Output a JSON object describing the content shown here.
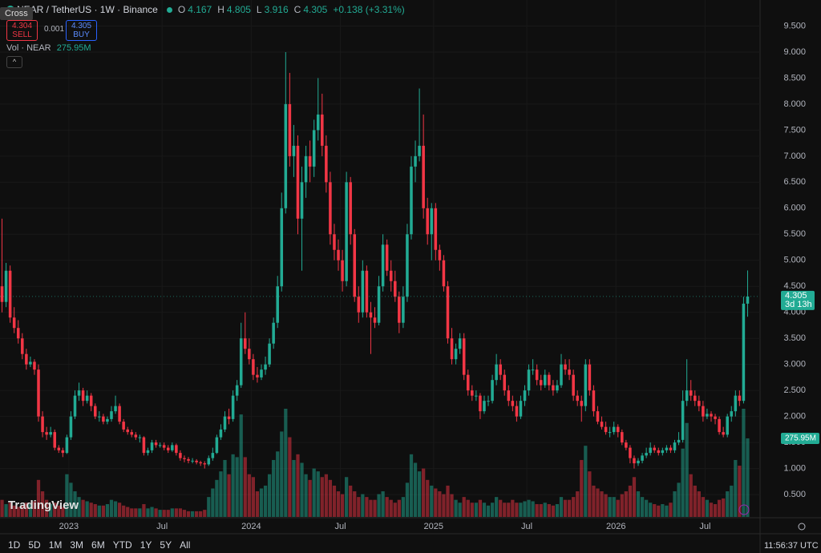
{
  "chart_data": {
    "type": "candlestick",
    "title": "NEAR / TetherUS · 1W · Binance",
    "ohlc_letters": [
      "O",
      "H",
      "L",
      "C"
    ],
    "change": "+0.138 (+3.31%)",
    "volume_title": "Vol · NEAR",
    "volume_value": "275.95M",
    "countdown": "3d 13h",
    "colors": {
      "up": "#22ab94",
      "down": "#f23645"
    },
    "grid": true,
    "ylim": [
      0.07,
      10.0
    ],
    "yticks": [
      {
        "value": 0.5,
        "label": "0.500"
      },
      {
        "value": 1,
        "label": "1.000"
      },
      {
        "value": 1.5,
        "label": "1.500"
      },
      {
        "value": 2,
        "label": "2.000"
      },
      {
        "value": 2.5,
        "label": "2.500"
      },
      {
        "value": 3,
        "label": "3.000"
      },
      {
        "value": 3.5,
        "label": "3.500"
      },
      {
        "value": 4,
        "label": "4.000"
      },
      {
        "value": 4.5,
        "label": "4.500"
      },
      {
        "value": 5,
        "label": "5.000"
      },
      {
        "value": 5.5,
        "label": "5.500"
      },
      {
        "value": 6,
        "label": "6.000"
      },
      {
        "value": 6.5,
        "label": "6.500"
      },
      {
        "value": 7,
        "label": "7.000"
      },
      {
        "value": 7.5,
        "label": "7.500"
      },
      {
        "value": 8,
        "label": "8.000"
      },
      {
        "value": 8.5,
        "label": "8.500"
      },
      {
        "value": 9,
        "label": "9.000"
      },
      {
        "value": 9.5,
        "label": "9.500"
      }
    ],
    "xticks": [
      {
        "value": 17,
        "label": "2023"
      },
      {
        "value": 40,
        "label": "Jul"
      },
      {
        "value": 62,
        "label": "2024"
      },
      {
        "value": 84,
        "label": "Jul"
      },
      {
        "value": 107,
        "label": "2025"
      },
      {
        "value": 130,
        "label": "Jul"
      },
      {
        "value": 152,
        "label": "2026"
      },
      {
        "value": 174,
        "label": "Jul"
      }
    ],
    "ohlc": [
      [
        4.5,
        5.8,
        4.0,
        4.2
      ],
      [
        4.2,
        4.95,
        4.1,
        4.8
      ],
      [
        4.8,
        4.9,
        3.8,
        3.9
      ],
      [
        3.9,
        4.1,
        3.6,
        3.7
      ],
      [
        3.7,
        3.85,
        3.4,
        3.5
      ],
      [
        3.5,
        3.6,
        3.1,
        3.2
      ],
      [
        3.2,
        3.3,
        2.9,
        3.0
      ],
      [
        3.0,
        3.15,
        2.95,
        3.05
      ],
      [
        3.05,
        3.1,
        2.8,
        2.9
      ],
      [
        2.9,
        3.0,
        1.9,
        2.0
      ],
      [
        2.0,
        2.1,
        1.6,
        1.7
      ],
      [
        1.7,
        1.8,
        1.55,
        1.65
      ],
      [
        1.65,
        1.8,
        1.6,
        1.7
      ],
      [
        1.7,
        1.75,
        1.35,
        1.4
      ],
      [
        1.4,
        1.45,
        1.3,
        1.35
      ],
      [
        1.35,
        1.4,
        1.22,
        1.3
      ],
      [
        1.3,
        1.65,
        1.28,
        1.6
      ],
      [
        1.6,
        2.1,
        1.55,
        2.0
      ],
      [
        2.0,
        2.5,
        1.95,
        2.4
      ],
      [
        2.4,
        2.65,
        2.3,
        2.5
      ],
      [
        2.5,
        2.55,
        2.2,
        2.3
      ],
      [
        2.3,
        2.5,
        2.25,
        2.4
      ],
      [
        2.4,
        2.45,
        2.1,
        2.2
      ],
      [
        2.2,
        2.25,
        1.95,
        2.0
      ],
      [
        2.0,
        2.1,
        1.9,
        2.0
      ],
      [
        2.0,
        2.05,
        1.85,
        1.9
      ],
      [
        1.9,
        2.0,
        1.85,
        1.95
      ],
      [
        1.95,
        2.2,
        1.9,
        2.1
      ],
      [
        2.1,
        2.4,
        2.05,
        2.2
      ],
      [
        2.2,
        2.25,
        1.85,
        1.9
      ],
      [
        1.9,
        1.95,
        1.7,
        1.75
      ],
      [
        1.75,
        1.8,
        1.65,
        1.7
      ],
      [
        1.7,
        1.75,
        1.6,
        1.65
      ],
      [
        1.65,
        1.7,
        1.55,
        1.6
      ],
      [
        1.6,
        1.65,
        1.5,
        1.6
      ],
      [
        1.6,
        1.62,
        1.25,
        1.3
      ],
      [
        1.3,
        1.4,
        1.25,
        1.35
      ],
      [
        1.35,
        1.55,
        1.3,
        1.5
      ],
      [
        1.5,
        1.55,
        1.4,
        1.45
      ],
      [
        1.45,
        1.5,
        1.4,
        1.45
      ],
      [
        1.45,
        1.5,
        1.35,
        1.4
      ],
      [
        1.4,
        1.45,
        1.3,
        1.35
      ],
      [
        1.35,
        1.5,
        1.32,
        1.45
      ],
      [
        1.45,
        1.48,
        1.25,
        1.3
      ],
      [
        1.3,
        1.35,
        1.15,
        1.2
      ],
      [
        1.2,
        1.25,
        1.12,
        1.18
      ],
      [
        1.18,
        1.22,
        1.1,
        1.15
      ],
      [
        1.15,
        1.2,
        1.1,
        1.15
      ],
      [
        1.15,
        1.18,
        1.08,
        1.12
      ],
      [
        1.12,
        1.15,
        1.05,
        1.1
      ],
      [
        1.1,
        1.14,
        1.0,
        1.08
      ],
      [
        1.08,
        1.25,
        1.05,
        1.2
      ],
      [
        1.2,
        1.4,
        1.15,
        1.3
      ],
      [
        1.3,
        1.65,
        1.28,
        1.6
      ],
      [
        1.6,
        1.85,
        1.55,
        1.75
      ],
      [
        1.75,
        2.1,
        1.7,
        2.0
      ],
      [
        2.0,
        2.15,
        1.85,
        1.95
      ],
      [
        1.95,
        2.5,
        1.9,
        2.4
      ],
      [
        2.4,
        2.7,
        2.3,
        2.6
      ],
      [
        2.6,
        3.8,
        2.55,
        3.5
      ],
      [
        3.5,
        4.0,
        3.2,
        3.3
      ],
      [
        3.3,
        3.5,
        3.0,
        3.1
      ],
      [
        3.1,
        3.2,
        2.7,
        2.8
      ],
      [
        2.8,
        2.95,
        2.65,
        2.75
      ],
      [
        2.75,
        3.0,
        2.7,
        2.9
      ],
      [
        2.9,
        3.15,
        2.8,
        3.0
      ],
      [
        3.0,
        3.5,
        2.95,
        3.4
      ],
      [
        3.4,
        3.9,
        3.3,
        3.8
      ],
      [
        3.8,
        4.7,
        3.7,
        4.5
      ],
      [
        4.5,
        6.3,
        4.4,
        6.0
      ],
      [
        6.0,
        9.0,
        5.9,
        8.0
      ],
      [
        8.0,
        8.6,
        6.8,
        7.0
      ],
      [
        7.0,
        7.6,
        6.6,
        7.2
      ],
      [
        7.2,
        7.4,
        5.5,
        5.8
      ],
      [
        5.8,
        6.8,
        4.8,
        6.5
      ],
      [
        6.5,
        7.2,
        6.2,
        7.0
      ],
      [
        7.0,
        7.3,
        6.5,
        6.8
      ],
      [
        6.8,
        7.7,
        6.6,
        7.5
      ],
      [
        7.5,
        8.5,
        7.3,
        7.8
      ],
      [
        7.8,
        8.2,
        7.0,
        7.2
      ],
      [
        7.2,
        7.4,
        6.3,
        6.5
      ],
      [
        6.5,
        6.7,
        5.3,
        5.5
      ],
      [
        5.5,
        5.7,
        5.0,
        5.2
      ],
      [
        5.2,
        5.4,
        4.8,
        5.0
      ],
      [
        5.0,
        5.2,
        4.4,
        4.6
      ],
      [
        4.6,
        6.7,
        4.5,
        6.5
      ],
      [
        6.5,
        6.6,
        5.3,
        5.5
      ],
      [
        5.5,
        5.6,
        4.2,
        4.3
      ],
      [
        4.3,
        4.5,
        3.8,
        4.0
      ],
      [
        4.0,
        5.0,
        3.9,
        4.8
      ],
      [
        4.8,
        4.9,
        3.9,
        4.0
      ],
      [
        4.0,
        4.2,
        3.2,
        3.9
      ],
      [
        3.9,
        4.1,
        3.7,
        3.8
      ],
      [
        3.8,
        4.7,
        3.75,
        4.5
      ],
      [
        4.5,
        5.5,
        4.4,
        5.3
      ],
      [
        5.3,
        5.4,
        4.7,
        4.8
      ],
      [
        4.8,
        5.0,
        4.4,
        4.6
      ],
      [
        4.6,
        4.8,
        4.2,
        4.3
      ],
      [
        4.3,
        4.4,
        3.6,
        3.8
      ],
      [
        3.8,
        4.5,
        3.7,
        4.3
      ],
      [
        4.3,
        5.7,
        4.2,
        5.5
      ],
      [
        5.5,
        7.0,
        5.4,
        6.8
      ],
      [
        6.8,
        7.3,
        6.5,
        7.0
      ],
      [
        7.0,
        8.3,
        6.9,
        7.2
      ],
      [
        7.2,
        7.8,
        5.8,
        6.0
      ],
      [
        6.0,
        6.2,
        5.3,
        5.5
      ],
      [
        5.5,
        6.1,
        5.0,
        6.0
      ],
      [
        6.0,
        6.1,
        5.0,
        5.2
      ],
      [
        5.2,
        5.3,
        4.8,
        5.0
      ],
      [
        5.0,
        5.1,
        4.4,
        4.5
      ],
      [
        4.5,
        4.6,
        3.4,
        3.5
      ],
      [
        3.5,
        3.7,
        3.0,
        3.1
      ],
      [
        3.1,
        3.4,
        3.0,
        3.3
      ],
      [
        3.3,
        3.6,
        3.2,
        3.5
      ],
      [
        3.5,
        3.6,
        2.7,
        2.8
      ],
      [
        2.8,
        2.9,
        2.4,
        2.5
      ],
      [
        2.5,
        2.6,
        2.3,
        2.4
      ],
      [
        2.4,
        2.5,
        2.3,
        2.4
      ],
      [
        2.4,
        2.45,
        1.95,
        2.1
      ],
      [
        2.1,
        2.4,
        2.05,
        2.3
      ],
      [
        2.3,
        2.4,
        2.2,
        2.3
      ],
      [
        2.3,
        2.8,
        2.25,
        2.7
      ],
      [
        2.7,
        3.2,
        2.6,
        3.0
      ],
      [
        3.0,
        3.1,
        2.7,
        2.8
      ],
      [
        2.8,
        2.9,
        2.4,
        2.5
      ],
      [
        2.5,
        2.6,
        2.2,
        2.3
      ],
      [
        2.3,
        2.4,
        2.1,
        2.2
      ],
      [
        2.2,
        2.3,
        1.9,
        2.0
      ],
      [
        2.0,
        2.4,
        1.95,
        2.3
      ],
      [
        2.3,
        2.6,
        2.2,
        2.5
      ],
      [
        2.5,
        3.0,
        2.4,
        2.9
      ],
      [
        2.9,
        3.1,
        2.8,
        2.9
      ],
      [
        2.9,
        3.0,
        2.6,
        2.7
      ],
      [
        2.7,
        2.8,
        2.5,
        2.6
      ],
      [
        2.6,
        2.9,
        2.55,
        2.8
      ],
      [
        2.8,
        2.85,
        2.5,
        2.6
      ],
      [
        2.6,
        2.7,
        2.4,
        2.5
      ],
      [
        2.5,
        2.7,
        2.45,
        2.6
      ],
      [
        2.6,
        3.2,
        2.55,
        3.0
      ],
      [
        3.0,
        3.1,
        2.8,
        2.9
      ],
      [
        2.9,
        3.1,
        2.7,
        2.8
      ],
      [
        2.8,
        2.9,
        2.3,
        2.4
      ],
      [
        2.4,
        2.5,
        2.2,
        2.3
      ],
      [
        2.3,
        2.4,
        1.9,
        2.2
      ],
      [
        2.2,
        3.1,
        2.1,
        3.0
      ],
      [
        3.0,
        3.1,
        2.4,
        2.5
      ],
      [
        2.5,
        2.6,
        2.0,
        2.1
      ],
      [
        2.1,
        2.2,
        1.85,
        1.9
      ],
      [
        1.9,
        2.0,
        1.75,
        1.8
      ],
      [
        1.8,
        1.9,
        1.65,
        1.7
      ],
      [
        1.7,
        1.8,
        1.6,
        1.7
      ],
      [
        1.7,
        1.9,
        1.65,
        1.8
      ],
      [
        1.8,
        1.85,
        1.6,
        1.7
      ],
      [
        1.7,
        1.75,
        1.45,
        1.5
      ],
      [
        1.5,
        1.55,
        1.35,
        1.4
      ],
      [
        1.4,
        1.45,
        1.1,
        1.2
      ],
      [
        1.2,
        1.25,
        1.0,
        1.1
      ],
      [
        1.1,
        1.2,
        1.05,
        1.15
      ],
      [
        1.15,
        1.3,
        1.1,
        1.25
      ],
      [
        1.25,
        1.4,
        1.2,
        1.3
      ],
      [
        1.3,
        1.5,
        1.25,
        1.4
      ],
      [
        1.4,
        1.45,
        1.3,
        1.35
      ],
      [
        1.35,
        1.4,
        1.25,
        1.3
      ],
      [
        1.3,
        1.4,
        1.25,
        1.35
      ],
      [
        1.35,
        1.45,
        1.3,
        1.4
      ],
      [
        1.4,
        1.45,
        1.3,
        1.35
      ],
      [
        1.35,
        1.55,
        1.3,
        1.5
      ],
      [
        1.5,
        1.7,
        1.45,
        1.55
      ],
      [
        1.55,
        2.5,
        1.5,
        2.3
      ],
      [
        2.3,
        3.1,
        2.2,
        2.5
      ],
      [
        2.5,
        2.7,
        2.3,
        2.4
      ],
      [
        2.4,
        2.5,
        2.2,
        2.3
      ],
      [
        2.3,
        2.4,
        2.1,
        2.2
      ],
      [
        2.2,
        2.3,
        1.9,
        2.0
      ],
      [
        2.0,
        2.15,
        1.95,
        2.05
      ],
      [
        2.05,
        2.1,
        1.9,
        2.0
      ],
      [
        2.0,
        2.05,
        1.85,
        1.95
      ],
      [
        1.95,
        2.0,
        1.65,
        1.7
      ],
      [
        1.7,
        1.8,
        1.6,
        1.65
      ],
      [
        1.65,
        2.05,
        1.6,
        2.0
      ],
      [
        2.0,
        2.2,
        1.9,
        2.1
      ],
      [
        2.1,
        2.5,
        2.0,
        2.4
      ],
      [
        2.4,
        2.5,
        2.2,
        2.3
      ],
      [
        2.3,
        4.3,
        2.25,
        4.167
      ],
      [
        4.167,
        4.805,
        3.916,
        4.305
      ]
    ],
    "volume": [
      60,
      45,
      50,
      40,
      35,
      40,
      50,
      45,
      55,
      130,
      90,
      60,
      45,
      50,
      40,
      35,
      150,
      120,
      90,
      70,
      60,
      55,
      50,
      45,
      40,
      40,
      45,
      60,
      55,
      50,
      40,
      35,
      30,
      30,
      30,
      45,
      30,
      35,
      30,
      25,
      25,
      25,
      30,
      30,
      30,
      25,
      20,
      20,
      20,
      20,
      25,
      70,
      100,
      130,
      160,
      200,
      150,
      220,
      210,
      360,
      210,
      150,
      140,
      90,
      100,
      110,
      150,
      200,
      230,
      300,
      380,
      280,
      200,
      220,
      190,
      150,
      130,
      170,
      160,
      140,
      150,
      130,
      110,
      90,
      80,
      140,
      110,
      90,
      70,
      80,
      70,
      60,
      60,
      80,
      90,
      70,
      60,
      50,
      60,
      70,
      120,
      220,
      190,
      160,
      170,
      130,
      110,
      100,
      90,
      80,
      110,
      80,
      60,
      50,
      70,
      60,
      50,
      50,
      60,
      50,
      40,
      50,
      70,
      60,
      50,
      50,
      60,
      50,
      50,
      55,
      60,
      55,
      45,
      45,
      50,
      45,
      40,
      45,
      70,
      60,
      60,
      70,
      90,
      200,
      250,
      160,
      110,
      100,
      90,
      80,
      70,
      70,
      60,
      80,
      90,
      110,
      140,
      90,
      70,
      60,
      50,
      45,
      40,
      45,
      40,
      50,
      90,
      120,
      240,
      330,
      150,
      110,
      90,
      70,
      60,
      50,
      45,
      60,
      65,
      90,
      110,
      200,
      180,
      380,
      275.95
    ]
  },
  "ui": {
    "crosshair": "Cross",
    "sell_price": "4.304",
    "sell": "SELL",
    "spread": "0.001",
    "buy_price": "4.305",
    "buy": "BUY",
    "timeframes": [
      "1D",
      "5D",
      "1M",
      "3M",
      "6M",
      "YTD",
      "1Y",
      "5Y",
      "All"
    ],
    "clock": "11:56:37 UTC",
    "brand": "TradingView"
  }
}
